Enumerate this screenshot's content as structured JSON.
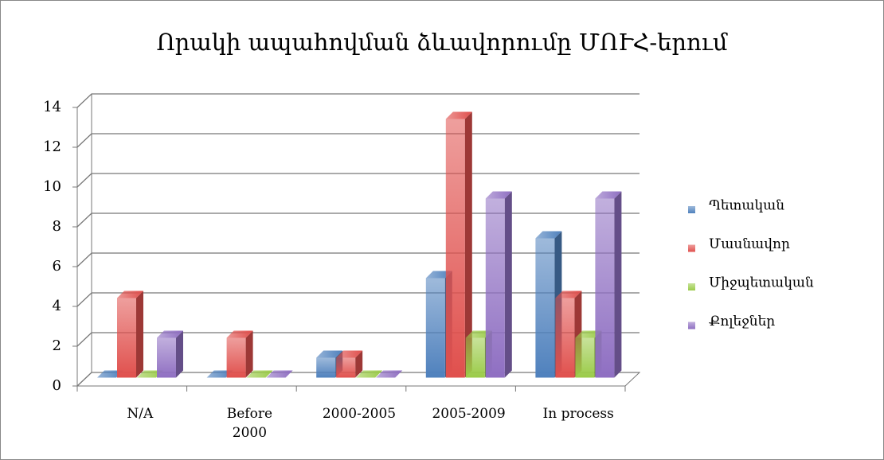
{
  "chart_data": {
    "type": "bar3d",
    "title": "Որակի ապահովման ձևավորումը ՄՈՒՀ-երում",
    "categories": [
      "N/A",
      "Before 2000",
      "2000-2005",
      "2005-2009",
      "In process"
    ],
    "series": [
      {
        "name": "Պետական",
        "color": "#4f81bd",
        "values": [
          0,
          0,
          1,
          5,
          7
        ]
      },
      {
        "name": "Մասնավոր",
        "color": "#e0504d",
        "values": [
          4,
          2,
          1,
          13,
          4
        ]
      },
      {
        "name": "Միջպետական",
        "color": "#9bcb49",
        "values": [
          0,
          0,
          0,
          2,
          2
        ]
      },
      {
        "name": "Քոլեջներ",
        "color": "#8f6fc2",
        "values": [
          2,
          0,
          0,
          9,
          9
        ]
      }
    ],
    "ylim": [
      0,
      14
    ],
    "yticks": [
      0,
      2,
      4,
      6,
      8,
      10,
      12,
      14
    ],
    "grid": true,
    "legend": "right"
  }
}
